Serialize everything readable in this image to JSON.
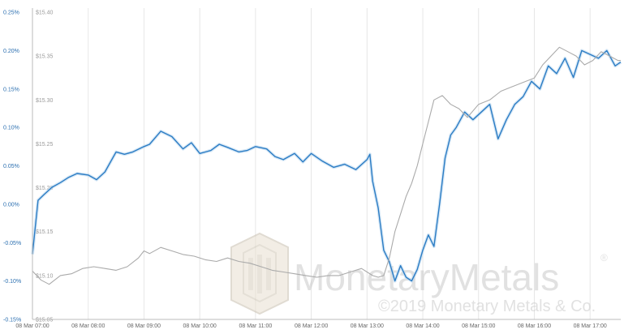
{
  "chart_data": {
    "type": "line",
    "title": "",
    "xlabel": "",
    "ylabel": "",
    "x_ticks": [
      "08 Mar 07:00",
      "08 Mar 08:00",
      "08 Mar 09:00",
      "08 Mar 10:00",
      "08 Mar 11:00",
      "08 Mar 12:00",
      "08 Mar 13:00",
      "08 Mar 14:00",
      "08 Mar 15:00",
      "08 Mar 16:00",
      "08 Mar 17:00"
    ],
    "x_range_hours": [
      7.0,
      17.55
    ],
    "y_left": {
      "ticks": [
        "0.25%",
        "0.20%",
        "0.15%",
        "0.10%",
        "0.05%",
        "0.00%",
        "-0.05%",
        "-0.10%",
        "-0.15%"
      ],
      "range": [
        -0.15,
        0.25
      ],
      "color": "#2b6fb0"
    },
    "y_right": {
      "ticks": [
        "$15.40",
        "$15.35",
        "$15.30",
        "$15.25",
        "$15.20",
        "$15.15",
        "$15.10",
        "$15.05"
      ],
      "range": [
        15.05,
        15.4
      ],
      "color": "#9a9a9a"
    },
    "grid": "vertical",
    "series": [
      {
        "color": "#2b7cc4",
        "axis": "left",
        "x": [
          7.0,
          7.1,
          7.2,
          7.35,
          7.5,
          7.65,
          7.8,
          8.0,
          8.15,
          8.3,
          8.5,
          8.65,
          8.8,
          9.0,
          9.1,
          9.3,
          9.5,
          9.7,
          9.85,
          10.0,
          10.2,
          10.35,
          10.5,
          10.7,
          10.85,
          11.0,
          11.2,
          11.35,
          11.5,
          11.7,
          11.85,
          12.0,
          12.2,
          12.4,
          12.6,
          12.8,
          13.0,
          13.05,
          13.1,
          13.2,
          13.3,
          13.4,
          13.5,
          13.6,
          13.7,
          13.8,
          13.9,
          14.0,
          14.1,
          14.2,
          14.3,
          14.4,
          14.5,
          14.6,
          14.75,
          14.9,
          15.05,
          15.2,
          15.35,
          15.5,
          15.65,
          15.8,
          15.95,
          16.1,
          16.25,
          16.4,
          16.55,
          16.7,
          16.85,
          17.0,
          17.15,
          17.3,
          17.45,
          17.55
        ],
        "values": [
          -0.065,
          0.005,
          0.012,
          0.022,
          0.028,
          0.035,
          0.04,
          0.038,
          0.032,
          0.042,
          0.068,
          0.065,
          0.068,
          0.075,
          0.078,
          0.095,
          0.088,
          0.072,
          0.08,
          0.066,
          0.07,
          0.078,
          0.074,
          0.068,
          0.07,
          0.075,
          0.072,
          0.062,
          0.058,
          0.066,
          0.055,
          0.066,
          0.056,
          0.048,
          0.052,
          0.045,
          0.058,
          0.065,
          0.03,
          -0.005,
          -0.06,
          -0.075,
          -0.1,
          -0.08,
          -0.095,
          -0.1,
          -0.085,
          -0.06,
          -0.04,
          -0.055,
          0.0,
          0.06,
          0.09,
          0.1,
          0.12,
          0.11,
          0.12,
          0.13,
          0.085,
          0.11,
          0.13,
          0.14,
          0.16,
          0.15,
          0.18,
          0.17,
          0.19,
          0.165,
          0.2,
          0.195,
          0.19,
          0.2,
          0.18,
          0.185
        ]
      },
      {
        "color": "#aaaaaa",
        "axis": "right",
        "x": [
          7.0,
          7.15,
          7.3,
          7.5,
          7.7,
          7.9,
          8.1,
          8.3,
          8.5,
          8.7,
          8.9,
          9.0,
          9.1,
          9.3,
          9.5,
          9.7,
          9.9,
          10.1,
          10.3,
          10.5,
          10.7,
          10.9,
          11.1,
          11.3,
          11.5,
          11.7,
          11.9,
          12.1,
          12.3,
          12.5,
          12.7,
          12.9,
          13.0,
          13.1,
          13.2,
          13.3,
          13.4,
          13.5,
          13.6,
          13.7,
          13.8,
          13.9,
          14.0,
          14.1,
          14.2,
          14.35,
          14.5,
          14.65,
          14.8,
          15.0,
          15.2,
          15.4,
          15.6,
          15.8,
          16.0,
          16.15,
          16.3,
          16.45,
          16.6,
          16.75,
          16.9,
          17.05,
          17.2,
          17.35,
          17.5,
          17.55
        ],
        "values": [
          15.105,
          15.095,
          15.09,
          15.1,
          15.102,
          15.108,
          15.11,
          15.108,
          15.106,
          15.11,
          15.12,
          15.128,
          15.125,
          15.132,
          15.128,
          15.124,
          15.122,
          15.118,
          15.116,
          15.12,
          15.116,
          15.114,
          15.11,
          15.106,
          15.104,
          15.102,
          15.1,
          15.098,
          15.1,
          15.1,
          15.104,
          15.108,
          15.104,
          15.1,
          15.098,
          15.1,
          15.12,
          15.15,
          15.17,
          15.19,
          15.205,
          15.225,
          15.25,
          15.275,
          15.3,
          15.305,
          15.295,
          15.29,
          15.28,
          15.295,
          15.3,
          15.31,
          15.315,
          15.32,
          15.325,
          15.34,
          15.35,
          15.36,
          15.355,
          15.35,
          15.34,
          15.345,
          15.355,
          15.35,
          15.345,
          15.345
        ]
      }
    ]
  },
  "watermark": {
    "brand": "MonetaryMetals",
    "registered": "®",
    "copyright": "©2019 Monetary Metals & Co."
  }
}
